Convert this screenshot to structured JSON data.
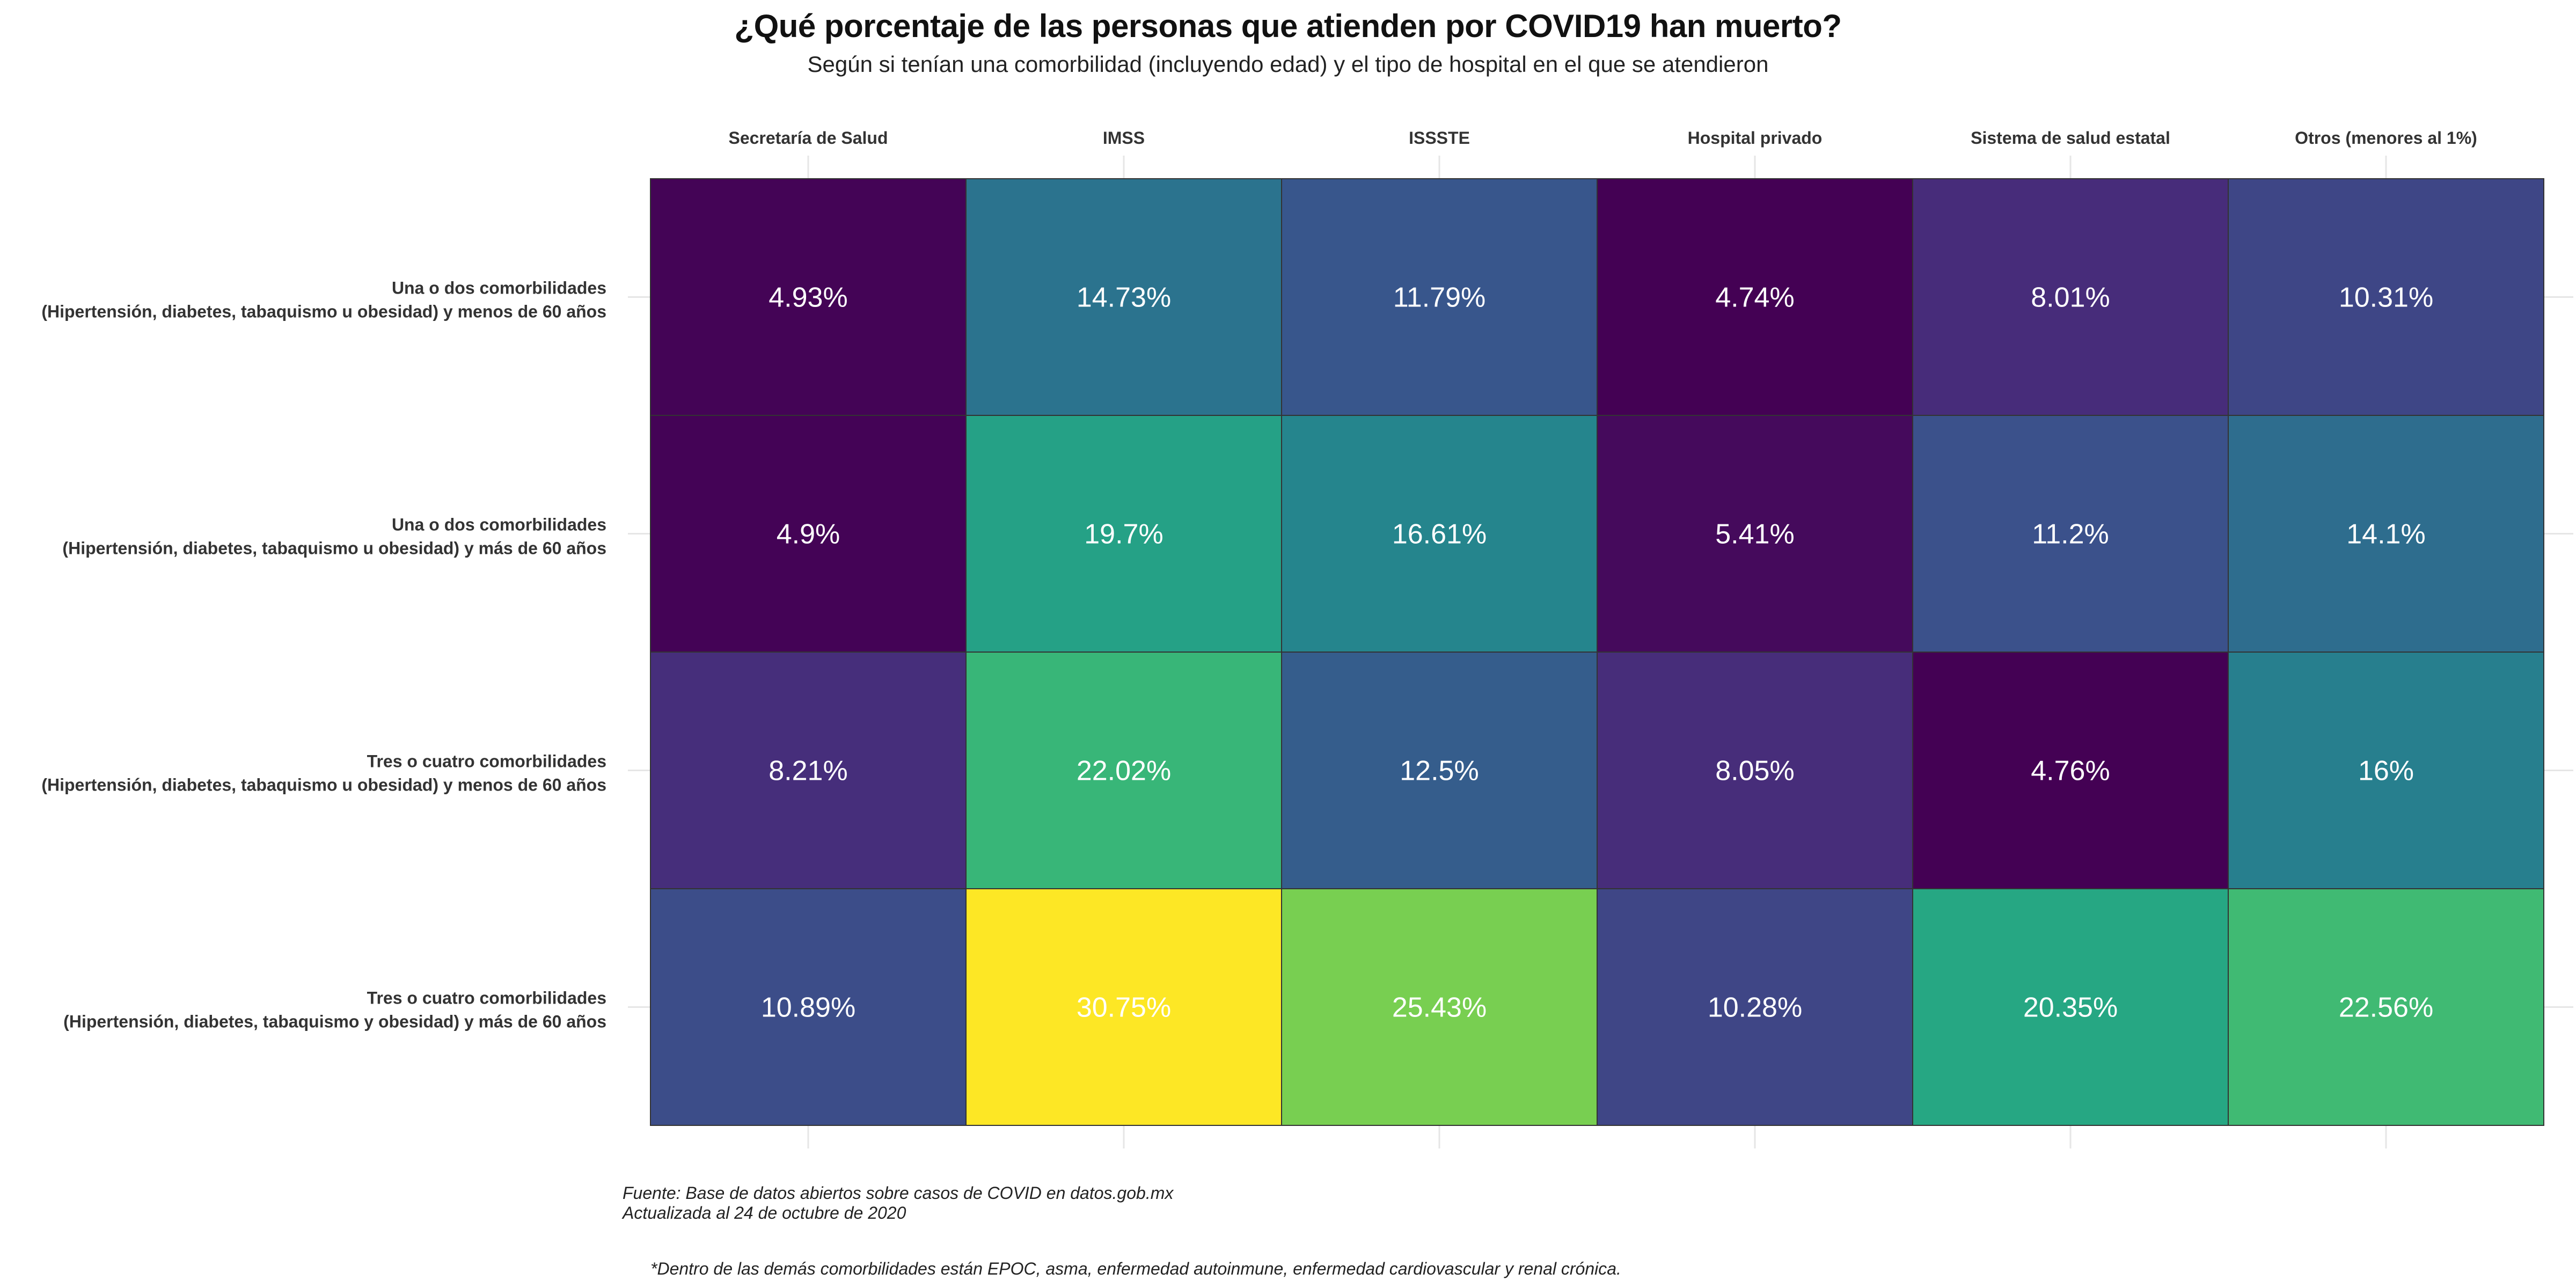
{
  "chart_data": {
    "type": "heatmap",
    "title": "¿Qué porcentaje de las personas que atienden por COVID19 han muerto?",
    "subtitle": "Según si tenían una comorbilidad (incluyendo edad) y el tipo de hospital en el que se atendieron",
    "columns": [
      "Secretaría de Salud",
      "IMSS",
      "ISSSTE",
      "Hospital privado",
      "Sistema de salud estatal",
      "Otros (menores al 1%)"
    ],
    "rows": [
      {
        "label_lines": [
          "Una o dos comorbilidades",
          "(Hipertensión, diabetes, tabaquismo u obesidad) y menos de 60 años"
        ],
        "values": [
          4.93,
          14.73,
          11.79,
          4.74,
          8.01,
          10.31
        ],
        "labels": [
          "4.93%",
          "14.73%",
          "11.79%",
          "4.74%",
          "8.01%",
          "10.31%"
        ]
      },
      {
        "label_lines": [
          "Una o dos comorbilidades",
          "(Hipertensión, diabetes, tabaquismo u obesidad) y más de 60 años"
        ],
        "values": [
          4.9,
          19.7,
          16.61,
          5.41,
          11.2,
          14.1
        ],
        "labels": [
          "4.9%",
          "19.7%",
          "16.61%",
          "5.41%",
          "11.2%",
          "14.1%"
        ]
      },
      {
        "label_lines": [
          "Tres o cuatro comorbilidades",
          "(Hipertensión, diabetes, tabaquismo u obesidad) y menos de 60 años"
        ],
        "values": [
          8.21,
          22.02,
          12.5,
          8.05,
          4.76,
          16
        ],
        "labels": [
          "8.21%",
          "22.02%",
          "12.5%",
          "8.05%",
          "4.76%",
          "16%"
        ]
      },
      {
        "label_lines": [
          "Tres o cuatro comorbilidades",
          "(Hipertensión, diabetes, tabaquismo y obesidad) y más de 60 años"
        ],
        "values": [
          10.89,
          30.75,
          25.43,
          10.28,
          20.35,
          22.56
        ],
        "labels": [
          "10.89%",
          "30.75%",
          "25.43%",
          "10.28%",
          "20.35%",
          "22.56%"
        ]
      }
    ],
    "color_scale": "viridis",
    "value_range": [
      4.74,
      30.75
    ],
    "grid": true,
    "legend": "none"
  },
  "source_note": {
    "line1": "Fuente: Base de datos abiertos sobre casos de COVID en datos.gob.mx",
    "line2": "Actualizada al 24 de octubre de 2020"
  },
  "footnote": "*Dentro de las demás comorbilidades están EPOC, asma, enfermedad autoinmune, enfermedad cardiovascular y renal crónica."
}
